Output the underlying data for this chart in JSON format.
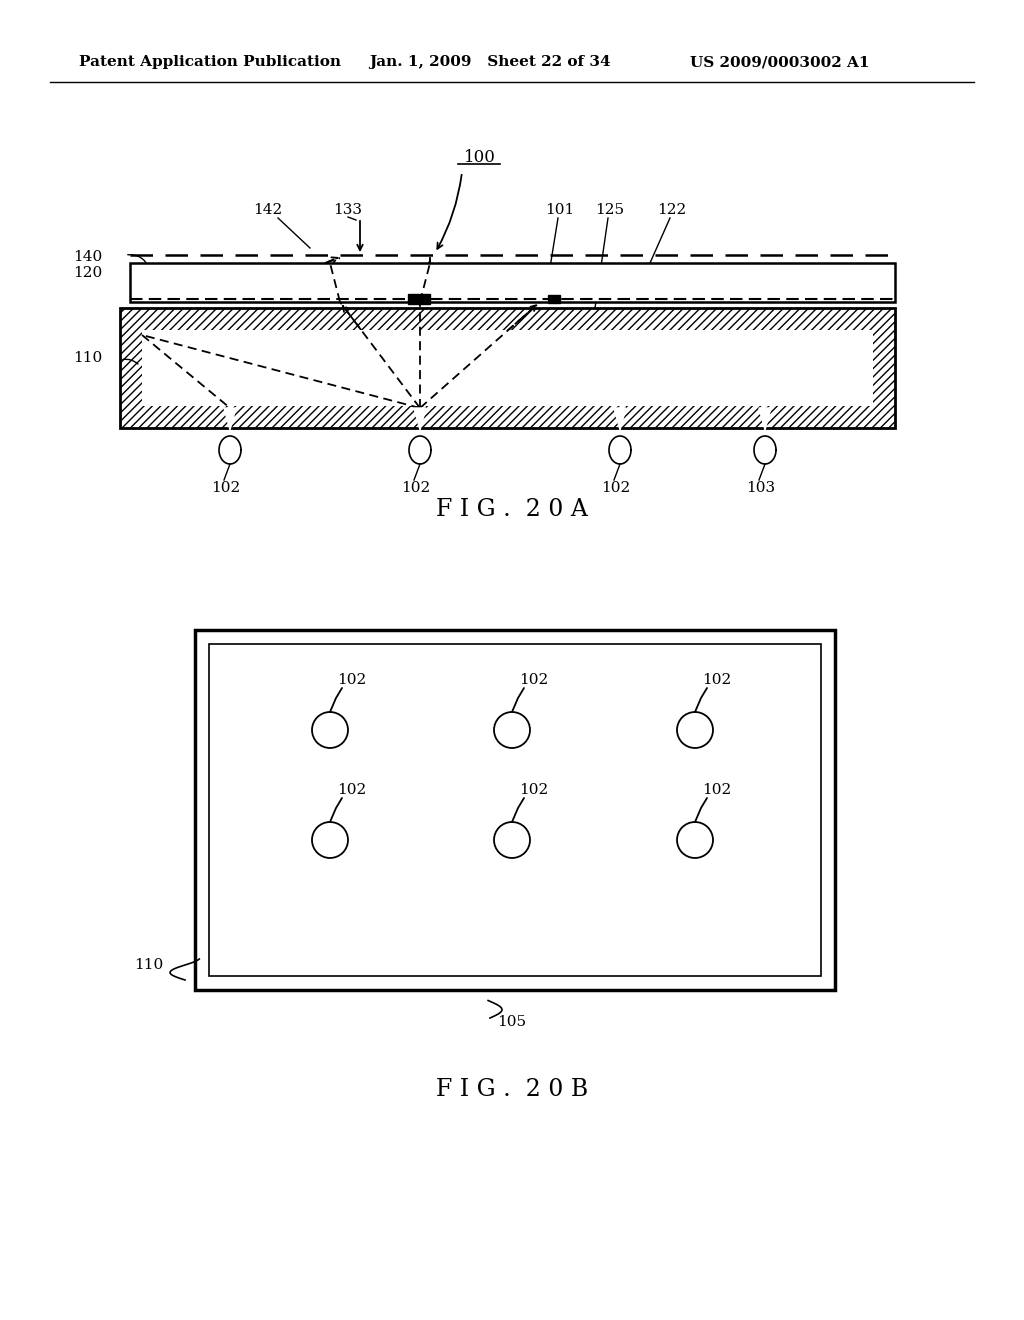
{
  "background_color": "#ffffff",
  "header_left": "Patent Application Publication",
  "header_mid": "Jan. 1, 2009   Sheet 22 of 34",
  "header_right": "US 2009/0003002 A1",
  "fig_label_20A": "F I G .  2 0 A",
  "fig_label_20B": "F I G .  2 0 B"
}
